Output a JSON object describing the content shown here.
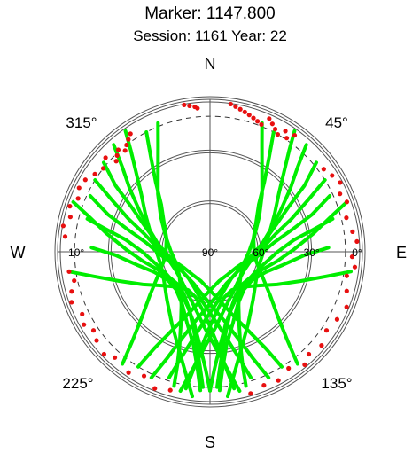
{
  "chart_data": {
    "type": "scatter",
    "projection": "polar-skyplot",
    "title": "Marker: 1147.800",
    "subtitle": "Session: 1161 Year: 22",
    "cardinal_labels": {
      "north": "N",
      "east": "E",
      "south": "S",
      "west": "W"
    },
    "azimuth_labels": [
      {
        "azimuth": 45,
        "text": "45°"
      },
      {
        "azimuth": 135,
        "text": "135°"
      },
      {
        "azimuth": 225,
        "text": "225°"
      },
      {
        "azimuth": 315,
        "text": "315°"
      }
    ],
    "elevation_labels": [
      {
        "elevation": 90,
        "text": "90°"
      },
      {
        "elevation": 60,
        "text": "60°"
      },
      {
        "elevation": 30,
        "text": "30°"
      },
      {
        "elevation": 10,
        "text": "10°"
      },
      {
        "elevation": 0,
        "text": "0°"
      }
    ],
    "elevation_rings": [
      0,
      30,
      60
    ],
    "cutoff_elevation": 10,
    "elevation_range": [
      0,
      90
    ],
    "azimuth_direction": "clockwise-from-north",
    "grid": true,
    "colors": {
      "track": "#00ee00",
      "low_elevation_points": "#e81010",
      "grid": "#555555",
      "text": "#000000"
    },
    "tracks": [
      {
        "el": [
          10,
          24,
          38,
          50,
          60,
          68,
          72,
          73,
          72,
          68,
          60,
          50,
          38,
          24,
          10
        ],
        "az": [
          302,
          298,
          292,
          285,
          272,
          256,
          238,
          218,
          198,
          182,
          168,
          160,
          154,
          150,
          148
        ]
      },
      {
        "el": [
          10,
          24,
          38,
          50,
          60,
          68,
          72,
          73,
          72,
          68,
          60,
          50,
          38,
          24,
          10
        ],
        "az": [
          58,
          62,
          68,
          75,
          88,
          104,
          122,
          142,
          162,
          178,
          192,
          200,
          206,
          210,
          212
        ]
      },
      {
        "el": [
          8,
          22,
          36,
          48,
          58,
          65,
          69,
          70,
          69,
          65,
          58,
          48,
          36,
          22,
          8
        ],
        "az": [
          310,
          305,
          300,
          292,
          280,
          266,
          248,
          228,
          208,
          192,
          178,
          168,
          162,
          158,
          155
        ]
      },
      {
        "el": [
          8,
          22,
          36,
          48,
          58,
          65,
          69,
          70,
          69,
          65,
          58,
          48,
          36,
          22,
          8
        ],
        "az": [
          50,
          55,
          60,
          68,
          80,
          94,
          112,
          132,
          152,
          168,
          182,
          192,
          198,
          202,
          205
        ]
      },
      {
        "el": [
          12,
          26,
          40,
          52,
          61,
          67,
          70,
          70,
          67,
          61,
          52,
          40,
          26,
          12
        ],
        "az": [
          295,
          290,
          285,
          278,
          266,
          252,
          236,
          220,
          204,
          190,
          178,
          170,
          165,
          162
        ]
      },
      {
        "el": [
          12,
          26,
          40,
          52,
          61,
          67,
          70,
          70,
          67,
          61,
          52,
          40,
          26,
          12
        ],
        "az": [
          65,
          70,
          75,
          82,
          94,
          108,
          124,
          140,
          156,
          170,
          182,
          190,
          195,
          198
        ]
      },
      {
        "el": [
          5,
          18,
          30,
          42,
          52,
          60,
          65,
          67,
          66,
          62,
          55,
          45,
          32,
          18,
          6
        ],
        "az": [
          318,
          314,
          308,
          300,
          290,
          276,
          260,
          242,
          224,
          208,
          194,
          184,
          176,
          171,
          168
        ]
      },
      {
        "el": [
          5,
          18,
          30,
          42,
          52,
          60,
          65,
          67,
          66,
          62,
          55,
          45,
          32,
          18,
          6
        ],
        "az": [
          42,
          46,
          52,
          60,
          70,
          84,
          100,
          118,
          136,
          152,
          166,
          176,
          184,
          189,
          192
        ]
      },
      {
        "el": [
          15,
          28,
          40,
          50,
          57,
          61,
          62,
          60,
          55,
          46,
          34,
          20,
          8
        ],
        "az": [
          285,
          282,
          278,
          270,
          258,
          244,
          228,
          214,
          202,
          192,
          186,
          182,
          180
        ]
      },
      {
        "el": [
          15,
          28,
          40,
          50,
          57,
          61,
          62,
          60,
          55,
          46,
          34,
          20,
          8
        ],
        "az": [
          75,
          78,
          82,
          90,
          102,
          116,
          132,
          146,
          158,
          168,
          174,
          178,
          180
        ]
      },
      {
        "el": [
          3,
          14,
          26,
          37,
          46,
          53,
          58,
          60,
          58,
          52,
          42,
          30,
          16,
          4
        ],
        "az": [
          325,
          322,
          317,
          310,
          300,
          288,
          272,
          255,
          238,
          222,
          208,
          198,
          191,
          187
        ]
      },
      {
        "el": [
          3,
          14,
          26,
          37,
          46,
          53,
          58,
          60,
          58,
          52,
          42,
          30,
          16,
          4
        ],
        "az": [
          35,
          38,
          43,
          50,
          60,
          72,
          88,
          105,
          122,
          138,
          152,
          162,
          169,
          173
        ]
      },
      {
        "el": [
          20,
          34,
          46,
          55,
          60,
          60,
          55,
          46,
          34,
          20,
          8
        ],
        "az": [
          272,
          268,
          260,
          250,
          236,
          222,
          208,
          198,
          190,
          186,
          184
        ]
      },
      {
        "el": [
          20,
          34,
          46,
          55,
          60,
          60,
          55,
          46,
          34,
          20,
          8
        ],
        "az": [
          88,
          92,
          100,
          110,
          124,
          138,
          152,
          162,
          170,
          174,
          176
        ]
      },
      {
        "el": [
          6,
          20,
          34,
          46,
          56,
          62,
          64,
          62,
          56,
          46,
          34,
          20,
          8
        ],
        "az": [
          262,
          258,
          252,
          244,
          234,
          222,
          210,
          198,
          188,
          180,
          175,
          172,
          170
        ]
      },
      {
        "el": [
          6,
          20,
          34,
          46,
          56,
          62,
          64,
          62,
          56,
          46,
          34,
          20,
          8
        ],
        "az": [
          98,
          102,
          108,
          116,
          126,
          138,
          150,
          162,
          172,
          180,
          185,
          188,
          190
        ]
      },
      {
        "el": [
          10,
          24,
          38,
          50,
          58,
          63,
          64,
          62,
          56,
          46,
          34,
          20,
          6
        ],
        "az": [
          332,
          328,
          322,
          314,
          302,
          288,
          272,
          258,
          245,
          234,
          226,
          221,
          218
        ]
      },
      {
        "el": [
          10,
          24,
          38,
          50,
          58,
          63,
          64,
          62,
          56,
          46,
          34,
          20,
          6
        ],
        "az": [
          28,
          32,
          38,
          46,
          58,
          72,
          88,
          102,
          115,
          126,
          134,
          139,
          142
        ]
      },
      {
        "el": [
          8,
          20,
          32,
          44,
          54,
          62,
          67,
          69,
          67,
          62,
          54,
          44,
          32,
          20,
          8
        ],
        "az": [
          338,
          334,
          328,
          318,
          306,
          290,
          270,
          250,
          232,
          218,
          208,
          202,
          198,
          196,
          195
        ]
      },
      {
        "el": [
          8,
          20,
          32,
          44,
          54,
          62,
          67,
          69,
          67,
          62,
          54,
          44,
          32,
          20,
          8
        ],
        "az": [
          22,
          26,
          32,
          42,
          54,
          70,
          90,
          110,
          128,
          142,
          152,
          158,
          162,
          164,
          165
        ]
      },
      {
        "el": [
          4,
          16,
          28,
          40,
          50,
          58,
          62,
          63,
          60,
          54,
          45,
          34,
          22,
          10
        ],
        "az": [
          290,
          286,
          280,
          272,
          262,
          250,
          236,
          222,
          210,
          200,
          193,
          188,
          185,
          183
        ]
      },
      {
        "el": [
          4,
          16,
          28,
          40,
          50,
          58,
          62,
          63,
          60,
          54,
          45,
          34,
          22,
          10
        ],
        "az": [
          70,
          74,
          80,
          88,
          98,
          110,
          124,
          138,
          150,
          160,
          167,
          172,
          175,
          177
        ]
      }
    ],
    "low_elevation_points": [
      {
        "el": 2,
        "az": 350
      },
      {
        "el": 3,
        "az": 352
      },
      {
        "el": 4,
        "az": 354
      },
      {
        "el": 5,
        "az": 355
      },
      {
        "el": 2,
        "az": 8
      },
      {
        "el": 3,
        "az": 10
      },
      {
        "el": 4,
        "az": 12
      },
      {
        "el": 5,
        "az": 14
      },
      {
        "el": 6,
        "az": 16
      },
      {
        "el": 7,
        "az": 18
      },
      {
        "el": 8,
        "az": 20
      },
      {
        "el": 9,
        "az": 22
      },
      {
        "el": 4,
        "az": 24
      },
      {
        "el": 6,
        "az": 26
      },
      {
        "el": 8,
        "az": 28
      },
      {
        "el": 10,
        "az": 30
      },
      {
        "el": 6,
        "az": 32
      },
      {
        "el": 9,
        "az": 34
      },
      {
        "el": 5,
        "az": 36
      },
      {
        "el": 6,
        "az": 326
      },
      {
        "el": 8,
        "az": 324
      },
      {
        "el": 10,
        "az": 322
      },
      {
        "el": 12,
        "az": 320
      },
      {
        "el": 9,
        "az": 318
      },
      {
        "el": 11,
        "az": 316
      },
      {
        "el": 13,
        "az": 314
      },
      {
        "el": 7,
        "az": 312
      },
      {
        "el": 10,
        "az": 308
      },
      {
        "el": 8,
        "az": 304
      },
      {
        "el": 5,
        "az": 300
      },
      {
        "el": 4,
        "az": 296
      },
      {
        "el": 6,
        "az": 292
      },
      {
        "el": 3,
        "az": 288
      },
      {
        "el": 5,
        "az": 284
      },
      {
        "el": 2,
        "az": 280
      },
      {
        "el": 4,
        "az": 276
      },
      {
        "el": 6,
        "az": 262
      },
      {
        "el": 8,
        "az": 258
      },
      {
        "el": 5,
        "az": 254
      },
      {
        "el": 3,
        "az": 250
      },
      {
        "el": 6,
        "az": 244
      },
      {
        "el": 4,
        "az": 240
      },
      {
        "el": 7,
        "az": 236
      },
      {
        "el": 5,
        "az": 232
      },
      {
        "el": 3,
        "az": 226
      },
      {
        "el": 6,
        "az": 222
      },
      {
        "el": 4,
        "az": 214
      },
      {
        "el": 7,
        "az": 208
      },
      {
        "el": 3,
        "az": 202
      },
      {
        "el": 5,
        "az": 196
      },
      {
        "el": 3,
        "az": 164
      },
      {
        "el": 5,
        "az": 158
      },
      {
        "el": 4,
        "az": 152
      },
      {
        "el": 7,
        "az": 146
      },
      {
        "el": 3,
        "az": 140
      },
      {
        "el": 6,
        "az": 136
      },
      {
        "el": 4,
        "az": 130
      },
      {
        "el": 7,
        "az": 124
      },
      {
        "el": 5,
        "az": 118
      },
      {
        "el": 3,
        "az": 112
      },
      {
        "el": 6,
        "az": 106
      },
      {
        "el": 8,
        "az": 100
      },
      {
        "el": 4,
        "az": 96
      },
      {
        "el": 6,
        "az": 92
      },
      {
        "el": 3,
        "az": 86
      },
      {
        "el": 5,
        "az": 82
      },
      {
        "el": 7,
        "az": 76
      },
      {
        "el": 4,
        "az": 70
      },
      {
        "el": 6,
        "az": 66
      },
      {
        "el": 3,
        "az": 62
      },
      {
        "el": 5,
        "az": 58
      },
      {
        "el": 7,
        "az": 54
      }
    ]
  }
}
